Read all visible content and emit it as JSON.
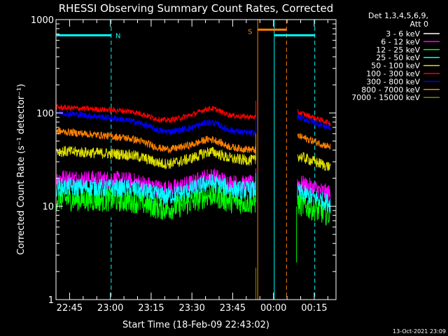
{
  "chart_data": {
    "type": "line",
    "title": "RHESSI Observing Summary Count Rates, Corrected",
    "xlabel": "Start Time (18-Feb-09 22:43:02)",
    "ylabel": "Corrected Count Rate (s⁻¹ detector⁻¹)",
    "y_scale": "log",
    "ylim": [
      1,
      1000
    ],
    "xlim_minutes_from_2240": [
      0,
      103
    ],
    "x_ticks": [
      {
        "label": "22:45",
        "m": 5
      },
      {
        "label": "23:00",
        "m": 20
      },
      {
        "label": "23:15",
        "m": 35
      },
      {
        "label": "23:30",
        "m": 50
      },
      {
        "label": "23:45",
        "m": 65
      },
      {
        "label": "00:00",
        "m": 80
      },
      {
        "label": "00:15",
        "m": 95
      }
    ],
    "y_ticks": [
      {
        "label": "1",
        "v": 1
      },
      {
        "label": "10",
        "v": 10
      },
      {
        "label": "100",
        "v": 100
      },
      {
        "label": "1000",
        "v": 1000
      }
    ],
    "legend_header": [
      "Det 1,3,4,5,6,9,",
      "Att 0"
    ],
    "legend_position": "right",
    "series": [
      {
        "name": "3 - 6 keV",
        "color": "#000000",
        "base": 11,
        "end": 8,
        "noise": 0.22
      },
      {
        "name": "6 - 12 keV",
        "color": "#ff00ff",
        "base": 20,
        "end": 17,
        "noise": 0.1
      },
      {
        "name": "12 - 25 keV",
        "color": "#00ff00",
        "base": 12,
        "end": 11,
        "noise": 0.13
      },
      {
        "name": "25 - 50 keV",
        "color": "#00ffff",
        "base": 16,
        "end": 15,
        "noise": 0.1
      },
      {
        "name": "50 - 100 keV",
        "color": "#e0e000",
        "base": 39,
        "end": 31,
        "noise": 0.06
      },
      {
        "name": "100 - 300 keV",
        "color": "#ff0000",
        "base": 115,
        "end": 90,
        "noise": 0.03
      },
      {
        "name": "300 - 800 keV",
        "color": "#0000ff",
        "base": 102,
        "end": 60,
        "noise": 0.035
      },
      {
        "name": "800 - 7000 keV",
        "color": "#ff8000",
        "base": 64,
        "end": 40,
        "noise": 0.04
      },
      {
        "name": "7000 - 15000 keV",
        "color": "#808000",
        "base": 1,
        "end": 1,
        "noise": 0.0
      }
    ],
    "gaps": [
      {
        "from_m": 73.5,
        "to_m": 88.5
      }
    ],
    "flags": [
      {
        "label": "N",
        "color": "#00ffff",
        "from_m": 0.2,
        "to_m": 20.3,
        "y": 680
      },
      {
        "label": "S",
        "color": "#ff8000",
        "from_m": 74.2,
        "to_m": 84.8,
        "y": 780
      },
      {
        "label": "",
        "color": "#00ffff",
        "from_m": 80.3,
        "to_m": 95.2,
        "y": 680
      }
    ],
    "night_lines": [
      {
        "m": 20.3,
        "color": "#00ffff",
        "dashed": true
      },
      {
        "m": 80.3,
        "color": "#00ffff",
        "dashed": false
      },
      {
        "m": 95.2,
        "color": "#00ffff",
        "dashed": true
      },
      {
        "m": 74.2,
        "color": "#ff8000",
        "dashed": false
      },
      {
        "m": 84.8,
        "color": "#ff8000",
        "dashed": true
      }
    ],
    "footer": "13-Oct-2021 23:09"
  }
}
